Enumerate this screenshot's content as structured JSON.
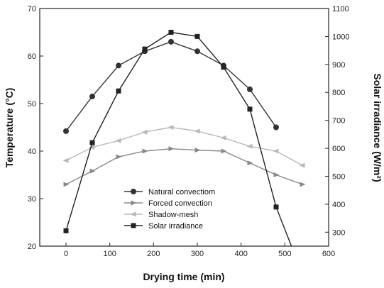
{
  "chart_data": {
    "type": "line",
    "xlabel": "Drying time (min)",
    "ylabel_left": "Temperature (°C)",
    "ylabel_right": "Solar irradiance (W/m²)",
    "xlim": [
      -60,
      600
    ],
    "ylim_left": [
      20,
      70
    ],
    "ylim_right": [
      250,
      1100
    ],
    "x_ticks": [
      0,
      100,
      200,
      300,
      400,
      500,
      600
    ],
    "y_left_ticks": [
      20,
      30,
      40,
      50,
      60,
      70
    ],
    "y_right_ticks": [
      300,
      400,
      500,
      600,
      700,
      800,
      900,
      1000,
      1100
    ],
    "legend_position": "lower-center",
    "series": [
      {
        "name": "Natural convectiom",
        "axis": "left",
        "marker": "circle",
        "color": "#333333",
        "x": [
          0,
          60,
          120,
          180,
          240,
          300,
          360,
          420,
          480
        ],
        "y": [
          44.2,
          51.5,
          58,
          61,
          63,
          61,
          58,
          53,
          45
        ]
      },
      {
        "name": "Forced convection",
        "axis": "left",
        "marker": "triangle-right",
        "color": "#888888",
        "x": [
          0,
          60,
          120,
          180,
          240,
          300,
          360,
          420,
          480,
          540
        ],
        "y": [
          33,
          35.8,
          38.8,
          40,
          40.5,
          40.2,
          40,
          37.5,
          35,
          33
        ]
      },
      {
        "name": "Shadow-mesh",
        "axis": "left",
        "marker": "triangle-left",
        "color": "#b8b8b8",
        "x": [
          0,
          60,
          120,
          180,
          240,
          300,
          360,
          420,
          480,
          540
        ],
        "y": [
          38,
          40.8,
          42.2,
          44,
          45,
          44.2,
          42.8,
          41,
          40,
          37
        ]
      },
      {
        "name": "Solar irradiance",
        "axis": "right",
        "marker": "square",
        "color": "#222222",
        "x": [
          0,
          60,
          120,
          180,
          240,
          300,
          360,
          420,
          480,
          540
        ],
        "y": [
          305,
          620,
          805,
          955,
          1015,
          1000,
          890,
          740,
          390,
          150
        ]
      }
    ]
  }
}
